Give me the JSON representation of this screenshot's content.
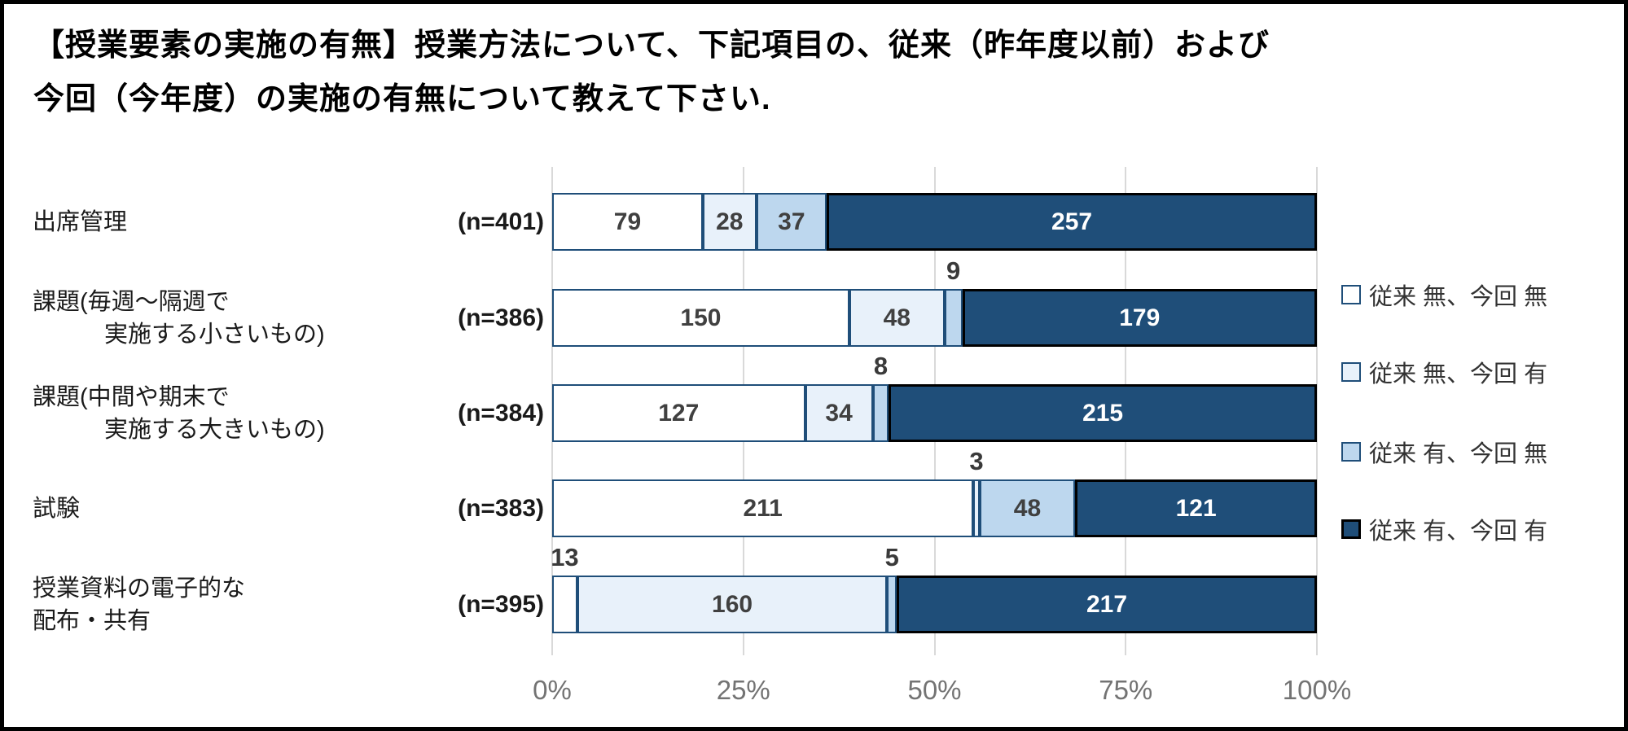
{
  "title_lines": [
    "【授業要素の実施の有無】授業方法について、下記項目の、従来（昨年度以前）および",
    "今回（今年度）の実施の有無について教えて下さい."
  ],
  "chart_data": {
    "type": "bar",
    "stacked": true,
    "orientation": "horizontal",
    "x_axis": {
      "ticks": [
        "0%",
        "25%",
        "50%",
        "75%",
        "100%"
      ],
      "range_percent": [
        0,
        100
      ],
      "grid": true
    },
    "categories": [
      {
        "lines": [
          "出席管理"
        ],
        "indent_second_line": false,
        "n_label": "(n=401)",
        "n": 401
      },
      {
        "lines": [
          "課題(毎週～隔週で",
          "実施する小さいもの)"
        ],
        "indent_second_line": true,
        "n_label": "(n=386)",
        "n": 386
      },
      {
        "lines": [
          "課題(中間や期末で",
          "実施する大きいもの)"
        ],
        "indent_second_line": true,
        "n_label": "(n=384)",
        "n": 384
      },
      {
        "lines": [
          "試験"
        ],
        "indent_second_line": false,
        "n_label": "(n=383)",
        "n": 383
      },
      {
        "lines": [
          "授業資料の電子的な",
          "配布・共有"
        ],
        "indent_second_line": false,
        "n_label": "(n=395)",
        "n": 395
      }
    ],
    "series": [
      {
        "name": "従来 無、今回 無",
        "fill": "#FFFFFF",
        "border": "#1F4E79",
        "border_px": 2,
        "label_color": "#404040",
        "values": [
          79,
          150,
          127,
          211,
          13
        ]
      },
      {
        "name": "従来 無、今回 有",
        "fill": "#E8F1FA",
        "border": "#1F4E79",
        "border_px": 2,
        "label_color": "#404040",
        "values": [
          28,
          48,
          34,
          3,
          160
        ]
      },
      {
        "name": "従来 有、今回 無",
        "fill": "#BDD7EE",
        "border": "#1F4E79",
        "border_px": 2,
        "label_color": "#404040",
        "values": [
          37,
          9,
          8,
          48,
          5
        ]
      },
      {
        "name": "従来 有、今回 有",
        "fill": "#1F4E79",
        "border": "#000000",
        "border_px": 3,
        "label_color": "#FFFFFF",
        "values": [
          257,
          179,
          215,
          121,
          217
        ]
      }
    ],
    "legend": {
      "position": "right"
    },
    "outside_label_threshold_percent": 5,
    "colors": {
      "gridline": "#D9D9D9",
      "axis_text": "#737373",
      "outside_label": "#3A3A3A",
      "category_text": "#1A1A1A",
      "frame_border": "#000000",
      "background": "#FFFFFF"
    }
  }
}
